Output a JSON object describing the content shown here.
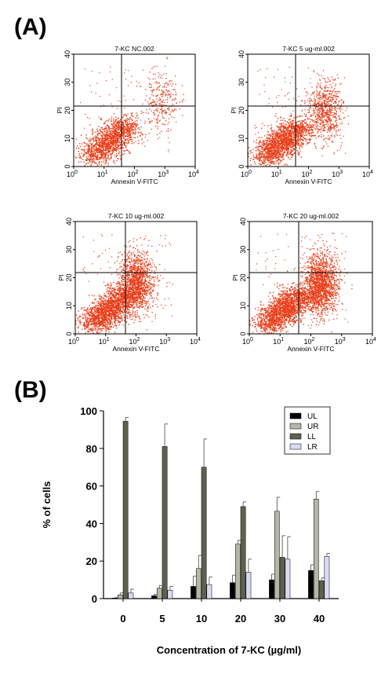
{
  "panel_a_label": "(A)",
  "panel_b_label": "(B)",
  "flow_plots": [
    {
      "title": "7-KC NC.002",
      "xlabel": "Annexin V-FITC",
      "ylabel": "PI"
    },
    {
      "title": "7-KC 5 ug-ml.002",
      "xlabel": "Annexin V-FITC",
      "ylabel": "PI"
    },
    {
      "title": "7-KC 10 ug-ml.002",
      "xlabel": "Annexin V-FITC",
      "ylabel": "PI"
    },
    {
      "title": "7-KC 20 ug-ml.002",
      "xlabel": "Annexin V-FITC",
      "ylabel": "PI"
    }
  ],
  "flow_axis_ticks": {
    "x": [
      "10",
      "10",
      "10",
      "10",
      "10"
    ],
    "x_exp": [
      "0",
      "1",
      "2",
      "3",
      "4"
    ],
    "y": [
      "0",
      "10",
      "20",
      "30",
      "40"
    ]
  },
  "chart_data": {
    "type": "bar",
    "xlabel": "Concentration of 7-KC (µg/ml)",
    "ylabel": "% of cells",
    "categories": [
      "0",
      "5",
      "10",
      "20",
      "30",
      "40"
    ],
    "ylim": [
      0,
      100
    ],
    "yticks": [
      "0",
      "20",
      "40",
      "60",
      "80",
      "100"
    ],
    "legend_position": "top-right",
    "series": [
      {
        "name": "UL",
        "color": "#000000",
        "values": [
          0.3,
          1.5,
          6.5,
          8.5,
          10,
          15
        ],
        "errors": [
          0.2,
          0.8,
          5.5,
          4,
          3,
          3
        ]
      },
      {
        "name": "UR",
        "color": "#b4b6a6",
        "values": [
          2,
          5.5,
          16,
          29,
          46.5,
          53
        ],
        "errors": [
          1,
          1.5,
          7,
          2,
          7.5,
          4
        ]
      },
      {
        "name": "LL",
        "color": "#5f6150",
        "values": [
          94.5,
          81,
          70,
          49,
          22,
          9.5
        ],
        "errors": [
          2,
          12,
          15,
          2.5,
          11.5,
          1.5
        ]
      },
      {
        "name": "LR",
        "color": "#d8daf2",
        "values": [
          3,
          4.5,
          7.5,
          14,
          21,
          22.5
        ],
        "errors": [
          2,
          2,
          4,
          7,
          12,
          1.5
        ]
      }
    ]
  }
}
